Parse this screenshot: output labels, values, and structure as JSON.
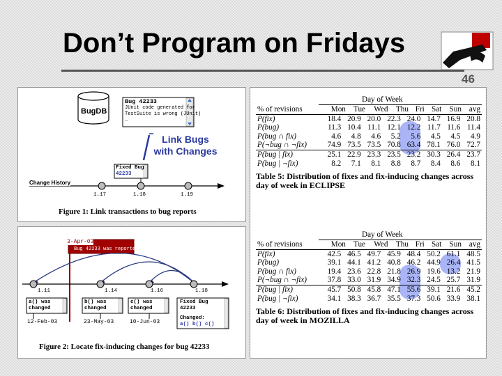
{
  "slide": {
    "title": "Don’t Program on Fridays",
    "page_number": "46"
  },
  "fig1": {
    "db_label": "BugDB",
    "bug_title": "Bug 42233",
    "bug_line1": "JUnit code generated for",
    "bug_line2": "TestSuite is wrong (JUnit)",
    "bug_line3": "…",
    "link_line1": "Link Bugs",
    "link_line2": "with Changes",
    "fixed_label": "Fixed Bug",
    "fixed_number": "42233",
    "history_label": "Change History",
    "rev1": "1.17",
    "rev2": "1.18",
    "rev3": "1.19",
    "caption": "Figure 1: Link transactions to bug reports"
  },
  "fig2": {
    "date_top": "3-Apr-03",
    "reported": "Bug 42233 was reported.",
    "revs": [
      "1.11",
      "1.14",
      "1.16",
      "1.18"
    ],
    "box_a1": "a() was",
    "box_a2": "changed",
    "box_b1": "b() was",
    "box_b2": "changed",
    "box_c1": "c() was",
    "box_c2": "changed",
    "fixed1": "Fixed Bug",
    "fixed2": "42233",
    "changed_label": "Changed:",
    "changed_funcs": "a() b() c()",
    "date1": "12-Feb-03",
    "date2": "23-May-03",
    "date3": "10-Jun-03",
    "caption": "Figure 2: Locate fix-inducing changes for bug 42233"
  },
  "table5": {
    "group_header": "Day of Week",
    "columns": [
      "% of revisions",
      "Mon",
      "Tue",
      "Wed",
      "Thu",
      "Fri",
      "Sat",
      "Sun",
      "avg"
    ],
    "rows": [
      {
        "label": "P(fix)",
        "values": [
          "18.4",
          "20.9",
          "20.0",
          "22.3",
          "24.0",
          "14.7",
          "16.9",
          "20.8"
        ]
      },
      {
        "label": "P(bug)",
        "values": [
          "11.3",
          "10.4",
          "11.1",
          "12.1",
          "12.2",
          "11.7",
          "11.6",
          "11.4"
        ]
      },
      {
        "label": "P(bug ∩ fix)",
        "values": [
          "4.6",
          "4.8",
          "4.6",
          "5.2",
          "5.6",
          "4.5",
          "4.5",
          "4.9"
        ]
      },
      {
        "label": "P(¬bug ∩ ¬fix)",
        "values": [
          "74.9",
          "73.5",
          "73.5",
          "70.8",
          "63.4",
          "78.1",
          "76.0",
          "72.7"
        ]
      },
      {
        "label": "P(bug | fix)",
        "values": [
          "25.1",
          "22.9",
          "23.3",
          "23.5",
          "23.2",
          "30.3",
          "26.4",
          "23.7"
        ]
      },
      {
        "label": "P(bug | ¬fix)",
        "values": [
          "8.2",
          "7.1",
          "8.1",
          "8.8",
          "8.7",
          "8.4",
          "8.6",
          "8.1"
        ]
      }
    ],
    "caption": "Table 5: Distribution of fixes and fix-inducing changes across day of week in ECLIPSE"
  },
  "table6": {
    "group_header": "Day of Week",
    "columns": [
      "% of revisions",
      "Mon",
      "Tue",
      "Wed",
      "Thu",
      "Fri",
      "Sat",
      "Sun",
      "avg"
    ],
    "rows": [
      {
        "label": "P(fix)",
        "values": [
          "42.5",
          "46.5",
          "49.7",
          "45.9",
          "48.4",
          "50.2",
          "61.1",
          "48.5"
        ]
      },
      {
        "label": "P(bug)",
        "values": [
          "39.1",
          "44.1",
          "41.2",
          "40.8",
          "46.2",
          "44.9",
          "26.4",
          "41.5"
        ]
      },
      {
        "label": "P(bug ∩ fix)",
        "values": [
          "19.4",
          "23.6",
          "22.8",
          "21.8",
          "26.9",
          "19.6",
          "13.2",
          "21.9"
        ]
      },
      {
        "label": "P(¬bug ∩ ¬fix)",
        "values": [
          "37.8",
          "33.0",
          "31.9",
          "34.9",
          "32.3",
          "24.5",
          "25.7",
          "31.9"
        ]
      },
      {
        "label": "P(bug | fix)",
        "values": [
          "45.7",
          "50.8",
          "45.8",
          "47.1",
          "55.6",
          "39.1",
          "21.6",
          "45.2"
        ]
      },
      {
        "label": "P(bug | ¬fix)",
        "values": [
          "34.1",
          "38.3",
          "36.7",
          "35.5",
          "37.3",
          "50.6",
          "33.9",
          "38.1"
        ]
      }
    ],
    "caption": "Table 6: Distribution of fixes and fix-inducing changes across day of week in MOZILLA"
  }
}
